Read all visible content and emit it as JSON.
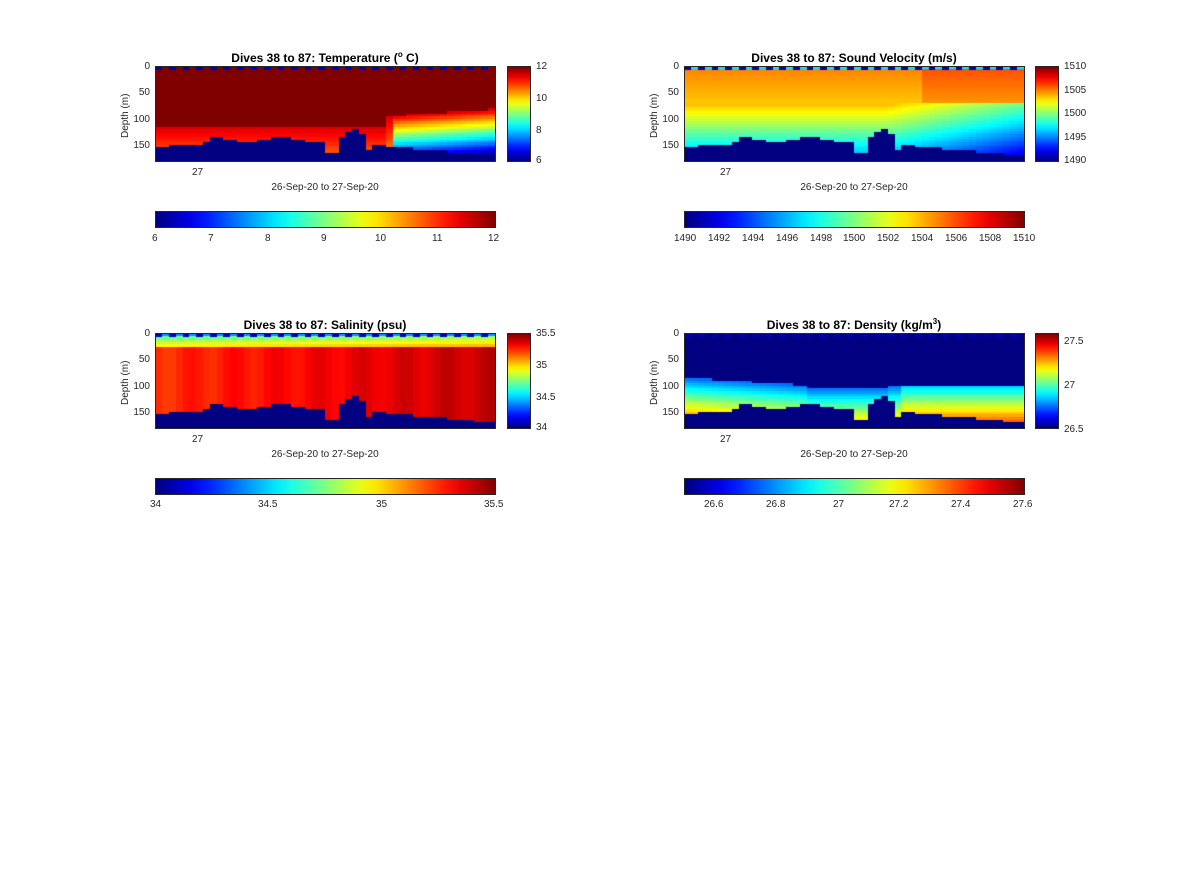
{
  "chart_data": [
    {
      "type": "heatmap",
      "title": "Dives 38 to 87: Temperature (",
      "title_sup": "o",
      "title_end": " C)",
      "xlabel": "26-Sep-20 to 27-Sep-20",
      "ylabel": "Depth (m)",
      "x_ticks": [
        "27"
      ],
      "y_ticks": [
        "0",
        "50",
        "100",
        "150"
      ],
      "ylim": [
        0,
        180
      ],
      "clim": [
        6,
        12
      ],
      "colorbar_ticks": [
        "12",
        "10",
        "8",
        "6"
      ],
      "colorbar_h_ticks": [
        "6",
        "7",
        "8",
        "9",
        "10",
        "11",
        "12"
      ]
    },
    {
      "type": "heatmap",
      "title": "Dives 38 to 87: Sound Velocity (m/s)",
      "title_sup": "",
      "title_end": "",
      "xlabel": "26-Sep-20 to 27-Sep-20",
      "ylabel": "Depth (m)",
      "x_ticks": [
        "27"
      ],
      "y_ticks": [
        "0",
        "50",
        "100",
        "150"
      ],
      "ylim": [
        0,
        180
      ],
      "clim": [
        1490,
        1510
      ],
      "colorbar_ticks": [
        "1510",
        "1505",
        "1500",
        "1495",
        "1490"
      ],
      "colorbar_h_ticks": [
        "1490",
        "1492",
        "1494",
        "1496",
        "1498",
        "1500",
        "1502",
        "1504",
        "1506",
        "1508",
        "1510"
      ]
    },
    {
      "type": "heatmap",
      "title": "Dives 38 to 87: Salinity (psu)",
      "title_sup": "",
      "title_end": "",
      "xlabel": "26-Sep-20 to 27-Sep-20",
      "ylabel": "Depth (m)",
      "x_ticks": [
        "27"
      ],
      "y_ticks": [
        "0",
        "50",
        "100",
        "150"
      ],
      "ylim": [
        0,
        180
      ],
      "clim": [
        34,
        35.5
      ],
      "colorbar_ticks": [
        "35.5",
        "35",
        "34.5",
        "34"
      ],
      "colorbar_h_ticks": [
        "34",
        "34.5",
        "35",
        "35.5"
      ]
    },
    {
      "type": "heatmap",
      "title": "Dives 38 to 87: Density (kg/m",
      "title_sup": "3",
      "title_end": ")",
      "xlabel": "26-Sep-20 to 27-Sep-20",
      "ylabel": "Depth (m)",
      "x_ticks": [
        "27"
      ],
      "y_ticks": [
        "0",
        "50",
        "100",
        "150"
      ],
      "ylim": [
        0,
        180
      ],
      "clim": [
        26.5,
        27.6
      ],
      "colorbar_ticks": [
        "27.5",
        "27",
        "26.5"
      ],
      "colorbar_h_ticks": [
        "26.6",
        "26.8",
        "27",
        "27.2",
        "27.4",
        "27.6"
      ]
    }
  ],
  "colormap": "jet"
}
